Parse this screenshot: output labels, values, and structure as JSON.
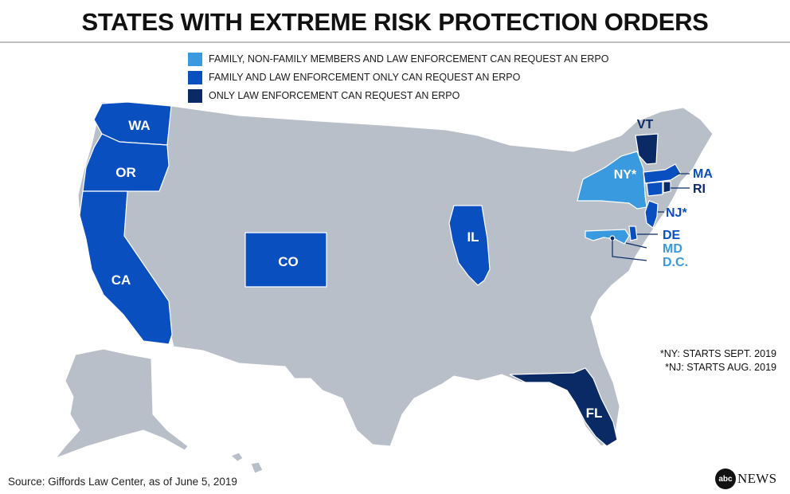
{
  "title": "STATES WITH EXTREME RISK PROTECTION ORDERS",
  "colors": {
    "light": "#3a9ae0",
    "medium": "#0a4fbf",
    "dark": "#0a2a66",
    "other": "#b9bfc8",
    "border": "#ffffff"
  },
  "legend": [
    {
      "category": "light",
      "label": "FAMILY, NON-FAMILY MEMBERS AND LAW ENFORCEMENT CAN REQUEST AN ERPO"
    },
    {
      "category": "medium",
      "label": "FAMILY AND LAW ENFORCEMENT ONLY CAN REQUEST AN ERPO"
    },
    {
      "category": "dark",
      "label": "ONLY LAW ENFORCEMENT CAN REQUEST AN ERPO"
    }
  ],
  "states": [
    {
      "abbr": "WA",
      "label": "WA",
      "category": "medium"
    },
    {
      "abbr": "OR",
      "label": "OR",
      "category": "medium"
    },
    {
      "abbr": "CA",
      "label": "CA",
      "category": "medium"
    },
    {
      "abbr": "CO",
      "label": "CO",
      "category": "medium"
    },
    {
      "abbr": "IL",
      "label": "IL",
      "category": "medium"
    },
    {
      "abbr": "NY",
      "label": "NY*",
      "category": "light"
    },
    {
      "abbr": "MA",
      "label": "MA",
      "category": "medium"
    },
    {
      "abbr": "CT",
      "label": "",
      "category": "medium"
    },
    {
      "abbr": "RI",
      "label": "RI",
      "category": "dark"
    },
    {
      "abbr": "VT",
      "label": "VT",
      "category": "dark"
    },
    {
      "abbr": "NJ",
      "label": "NJ*",
      "category": "medium"
    },
    {
      "abbr": "DE",
      "label": "DE",
      "category": "medium"
    },
    {
      "abbr": "MD",
      "label": "MD",
      "category": "light"
    },
    {
      "abbr": "DC",
      "label": "D.C.",
      "category": "dark"
    },
    {
      "abbr": "FL",
      "label": "FL",
      "category": "dark"
    }
  ],
  "notes": [
    "*NY: STARTS SEPT. 2019",
    "*NJ: STARTS AUG. 2019"
  ],
  "source": "Source: Giffords Law Center, as of June 5, 2019",
  "logo": {
    "circle": "abc",
    "text": "NEWS"
  }
}
